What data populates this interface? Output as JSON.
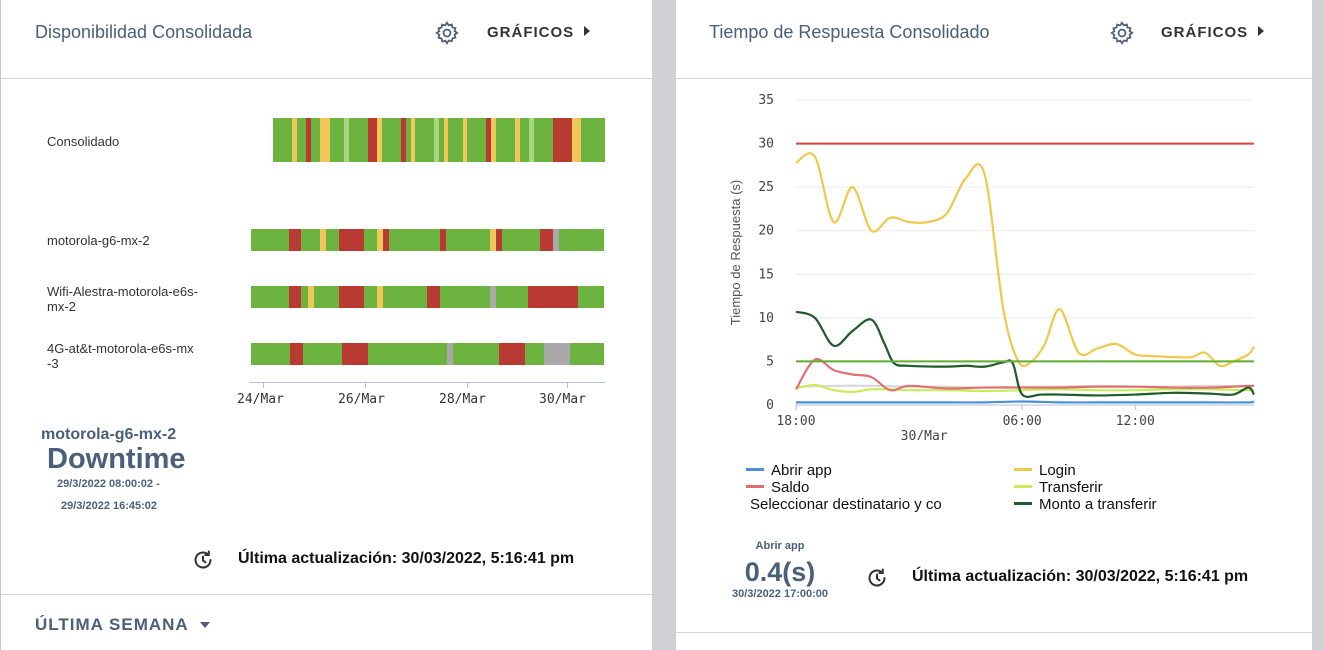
{
  "left": {
    "title": "Disponibilidad Consolidada",
    "graficos_label": "GRÁFICOS",
    "rows": [
      {
        "label": "Consolidado"
      },
      {
        "label": "motorola-g6-mx-2"
      },
      {
        "label_line1": "Wifi-Alestra-motorola-e6s-",
        "label_line2": "mx-2"
      },
      {
        "label_line1": "4G-at&t-motorola-e6s-mx",
        "label_line2": "-3"
      }
    ],
    "x_ticks": [
      "24/Mar",
      "26/Mar",
      "28/Mar",
      "30/Mar"
    ],
    "selected": {
      "device": "motorola-g6-mx-2",
      "status": "Downtime",
      "range_start": "29/3/2022 08:00:02 -",
      "range_end": "29/3/2022 16:45:02"
    },
    "last_update": "Última actualización: 30/03/2022, 5:16:41 pm",
    "period_label": "ÚLTIMA SEMANA",
    "colors": {
      "green": "#6db33f",
      "red": "#b93a32",
      "yellow": "#f0c85a",
      "gray": "#a9a9a9"
    }
  },
  "right": {
    "title": "Tiempo de Respuesta Consolidado",
    "graficos_label": "GRÁFICOS",
    "stat": {
      "label": "Abrir app",
      "value": "0.4(s)",
      "time": "30/3/2022 17:00:00"
    },
    "last_update": "Última actualización: 30/03/2022, 5:16:41 pm"
  },
  "chart_data": {
    "type": "line",
    "title": "Tiempo de Respuesta Consolidado",
    "ylabel": "Tiempo de Respuesta (s)",
    "xlabel": "",
    "ylim": [
      0,
      35
    ],
    "yticks": [
      "0",
      "5",
      "10",
      "15",
      "20",
      "25",
      "30",
      "35"
    ],
    "xlim": [
      18,
      42.3
    ],
    "xticks": [
      {
        "x": 18,
        "label": "18:00"
      },
      {
        "x": 30,
        "label": "06:00"
      },
      {
        "x": 36,
        "label": "12:00"
      }
    ],
    "date_label": "30/Mar",
    "date_label_x": 24.8,
    "thresholds": [
      {
        "value": 30,
        "color": "#d9413a"
      },
      {
        "value": 5,
        "color": "#5fae2e"
      }
    ],
    "series": [
      {
        "name": "Abrir app",
        "color": "#4a90d9",
        "x": [
          18,
          20,
          22,
          24,
          26,
          28,
          30,
          32,
          34,
          36,
          38,
          40,
          42,
          42.3
        ],
        "values": [
          0.3,
          0.3,
          0.3,
          0.3,
          0.3,
          0.3,
          0.4,
          0.3,
          0.3,
          0.3,
          0.3,
          0.3,
          0.3,
          0.4
        ]
      },
      {
        "name": "Login",
        "color": "#f0c84c",
        "x": [
          18,
          19,
          20,
          21,
          22,
          23,
          24,
          25,
          26,
          27,
          28,
          29,
          29.8,
          30.5,
          31.2,
          32,
          33,
          34,
          35,
          36,
          37,
          38,
          39,
          39.7,
          40.5,
          41.2,
          42,
          42.3
        ],
        "values": [
          27.8,
          28.5,
          21,
          25,
          20,
          21.5,
          21,
          21,
          22,
          26,
          26.5,
          11,
          5,
          5,
          7,
          11,
          6,
          6.5,
          7,
          5.8,
          5.6,
          5.5,
          5.5,
          6,
          4.5,
          5,
          5.8,
          6.7
        ]
      },
      {
        "name": "Saldo",
        "color": "#e07070",
        "x": [
          18,
          19,
          20,
          21,
          22,
          23,
          24,
          26,
          28,
          30,
          32,
          34,
          36,
          38,
          40,
          42,
          42.3
        ],
        "values": [
          1.8,
          5.2,
          4,
          3.5,
          3.2,
          1.7,
          2.2,
          1.9,
          2,
          2,
          2,
          2.1,
          2.1,
          2,
          2,
          2.2,
          2.2
        ]
      },
      {
        "name": "Transferir",
        "color": "#c8ec5a",
        "x": [
          18,
          19,
          20,
          21,
          22,
          23,
          24,
          26,
          28,
          30,
          32,
          34,
          36,
          38,
          40,
          42,
          42.3
        ],
        "values": [
          1.9,
          2.3,
          1.7,
          1.5,
          1.8,
          1.8,
          1.7,
          1.7,
          1.6,
          1.7,
          1.8,
          1.7,
          1.7,
          1.8,
          1.8,
          1.7,
          1.7
        ]
      },
      {
        "name": "Seleccionar destinatario y co",
        "color": "#d8d8d8",
        "x": [
          18,
          20,
          22,
          24,
          26,
          28,
          30,
          32,
          34,
          36,
          38,
          40,
          42,
          42.3
        ],
        "values": [
          2.1,
          2.2,
          2.2,
          2.1,
          2.1,
          2.0,
          2.1,
          2.1,
          2.2,
          2.1,
          2.1,
          2.2,
          2.1,
          2.1
        ]
      },
      {
        "name": "Monto a transferir",
        "color": "#1e5a2a",
        "x": [
          18,
          19,
          20,
          21,
          22,
          22.7,
          23.2,
          24,
          26,
          27,
          28,
          29,
          29.5,
          30,
          31,
          32,
          34,
          36,
          38,
          40,
          41.2,
          42,
          42.3
        ],
        "values": [
          10.7,
          10,
          6.8,
          8.5,
          9.8,
          7,
          4.8,
          4.5,
          4.4,
          4.5,
          4.4,
          4.9,
          4.8,
          1.2,
          1.2,
          1.2,
          1.1,
          1.2,
          1.4,
          1.3,
          1.2,
          2,
          1.2
        ]
      }
    ],
    "legend": [
      {
        "name": "Abrir app",
        "color": "#4a90d9"
      },
      {
        "name": "Login",
        "color": "#f0c84c"
      },
      {
        "name": "Saldo",
        "color": "#e07070"
      },
      {
        "name": "Transferir",
        "color": "#c8ec5a"
      },
      {
        "name": "Seleccionar destinatario y co",
        "color": ""
      },
      {
        "name": "Monto a transferir",
        "color": "#1e5a2a"
      }
    ]
  }
}
